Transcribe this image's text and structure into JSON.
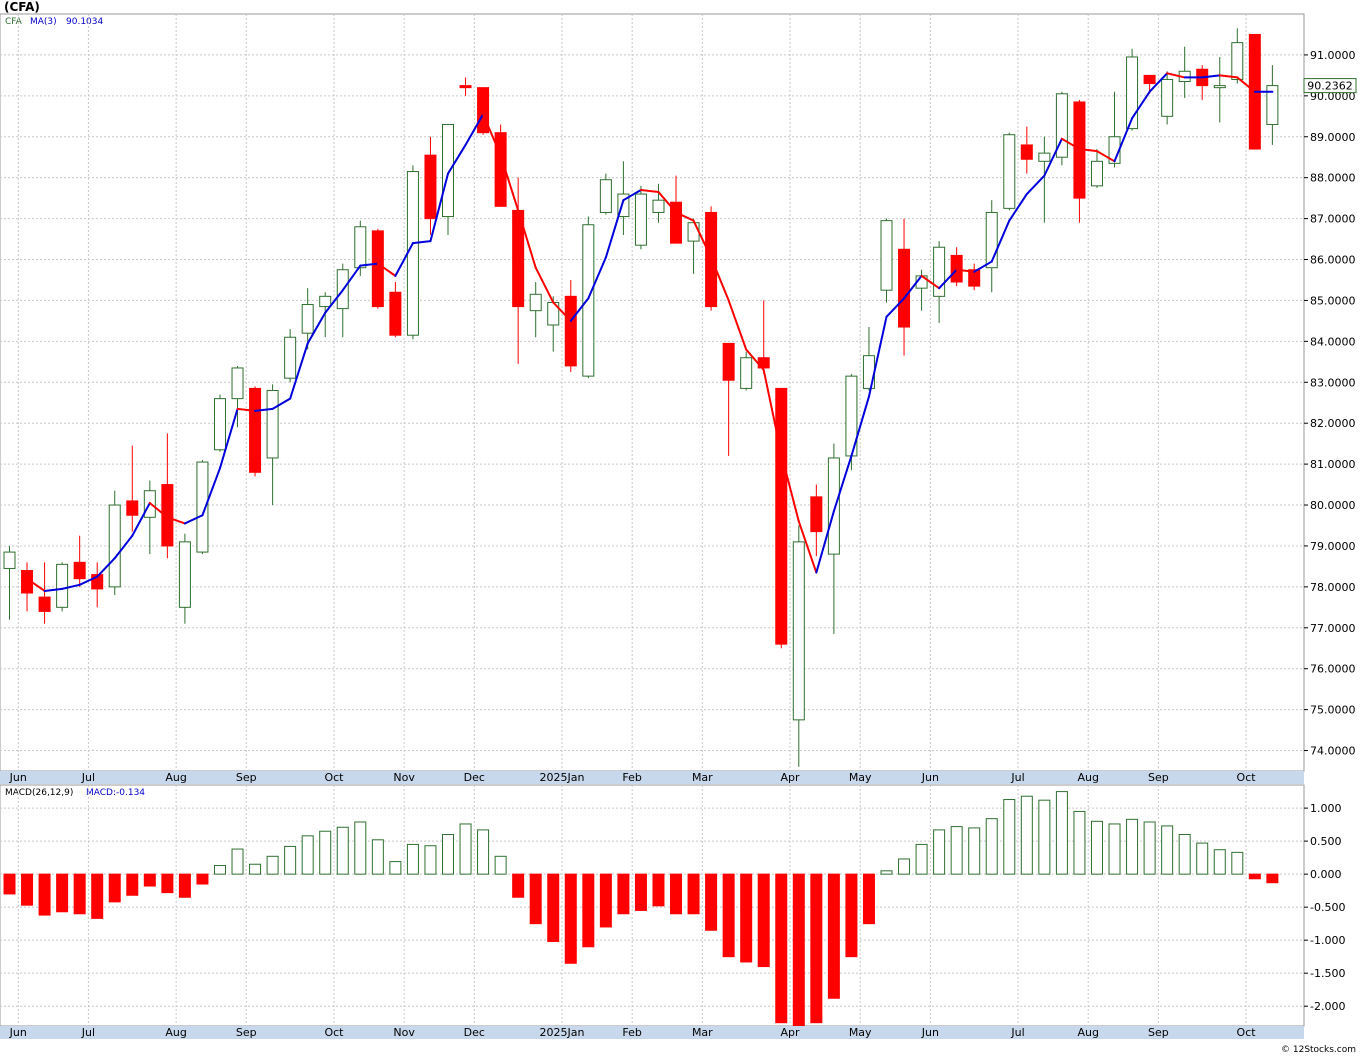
{
  "header": {
    "title": "(CFA)",
    "symbol": "CFA",
    "ma_label": "MA(3)",
    "ma_value": "90.1034",
    "last_price": "90.2362",
    "macd_label": "MACD(26,12,9)",
    "macd_value": "MACD:-0.134",
    "footer": "© 12Stocks.com"
  },
  "colors": {
    "up": "#2f6f2f",
    "down": "#ff0000",
    "ma_up": "#0000dd",
    "ma_down": "#ff0000",
    "grid": "#c8c8c8",
    "axis_bar": "#c8d8ec"
  },
  "chart_data": [
    {
      "type": "candlestick",
      "title": "(CFA)",
      "ylim": [
        73.5,
        92.0
      ],
      "ytick_values": [
        74,
        75,
        76,
        77,
        78,
        79,
        80,
        81,
        82,
        83,
        84,
        85,
        86,
        87,
        88,
        89,
        90,
        91
      ],
      "ytick_labels": [
        "74.0000",
        "75.0000",
        "76.0000",
        "77.0000",
        "78.0000",
        "79.0000",
        "80.0000",
        "81.0000",
        "82.0000",
        "83.0000",
        "84.0000",
        "85.0000",
        "86.0000",
        "87.0000",
        "88.0000",
        "89.0000",
        "90.0000",
        "91.0000"
      ],
      "month_labels": [
        {
          "label": "Jun",
          "bar": 1
        },
        {
          "label": "Jul",
          "bar": 5
        },
        {
          "label": "Aug",
          "bar": 10
        },
        {
          "label": "Sep",
          "bar": 14
        },
        {
          "label": "Oct",
          "bar": 19
        },
        {
          "label": "Nov",
          "bar": 23
        },
        {
          "label": "Dec",
          "bar": 27
        },
        {
          "label": "2025Jan",
          "bar": 32
        },
        {
          "label": "Feb",
          "bar": 36
        },
        {
          "label": "Mar",
          "bar": 40
        },
        {
          "label": "Apr",
          "bar": 45
        },
        {
          "label": "May",
          "bar": 49
        },
        {
          "label": "Jun",
          "bar": 53
        },
        {
          "label": "Jul",
          "bar": 58
        },
        {
          "label": "Aug",
          "bar": 62
        },
        {
          "label": "Sep",
          "bar": 66
        },
        {
          "label": "Oct",
          "bar": 71
        }
      ],
      "ohlc": [
        [
          78.45,
          79.0,
          77.2,
          78.85
        ],
        [
          78.4,
          78.6,
          77.4,
          77.85
        ],
        [
          77.75,
          78.6,
          77.1,
          77.4
        ],
        [
          77.5,
          78.6,
          77.4,
          78.55
        ],
        [
          78.6,
          79.25,
          78.0,
          78.2
        ],
        [
          78.3,
          78.6,
          77.5,
          77.95
        ],
        [
          78.0,
          80.35,
          77.8,
          80.0
        ],
        [
          80.1,
          81.45,
          79.35,
          79.75
        ],
        [
          79.7,
          80.6,
          78.8,
          80.35
        ],
        [
          80.5,
          81.75,
          78.7,
          79.0
        ],
        [
          77.5,
          79.3,
          77.1,
          79.1
        ],
        [
          78.85,
          81.1,
          78.8,
          81.05
        ],
        [
          81.35,
          82.7,
          81.3,
          82.6
        ],
        [
          82.6,
          83.4,
          81.9,
          83.35
        ],
        [
          82.85,
          82.9,
          80.7,
          80.8
        ],
        [
          81.15,
          82.95,
          80.0,
          82.8
        ],
        [
          83.1,
          84.3,
          83.0,
          84.1
        ],
        [
          84.2,
          85.3,
          83.8,
          84.9
        ],
        [
          84.85,
          85.2,
          84.1,
          85.1
        ],
        [
          84.8,
          85.9,
          84.1,
          85.75
        ],
        [
          85.8,
          86.95,
          85.6,
          86.8
        ],
        [
          86.7,
          86.75,
          84.8,
          84.85
        ],
        [
          85.2,
          85.45,
          84.1,
          84.15
        ],
        [
          84.15,
          88.3,
          84.05,
          88.15
        ],
        [
          88.55,
          89.0,
          86.6,
          87.0
        ],
        [
          87.05,
          89.3,
          86.6,
          89.3
        ],
        [
          90.25,
          90.45,
          90.0,
          90.2
        ],
        [
          90.2,
          90.2,
          89.05,
          89.1
        ],
        [
          89.1,
          89.3,
          87.3,
          87.3
        ],
        [
          87.2,
          88.0,
          83.45,
          84.85
        ],
        [
          84.75,
          85.45,
          84.1,
          85.15
        ],
        [
          84.4,
          85.1,
          83.75,
          84.95
        ],
        [
          85.1,
          85.5,
          83.25,
          83.4
        ],
        [
          83.15,
          87.05,
          83.1,
          86.85
        ],
        [
          87.15,
          88.1,
          87.1,
          87.95
        ],
        [
          87.05,
          88.4,
          86.6,
          87.6
        ],
        [
          86.35,
          87.8,
          86.25,
          87.6
        ],
        [
          87.15,
          87.85,
          86.9,
          87.45
        ],
        [
          87.4,
          88.05,
          86.45,
          86.4
        ],
        [
          86.45,
          87.0,
          85.65,
          86.9
        ],
        [
          87.15,
          87.3,
          84.75,
          84.85
        ],
        [
          83.95,
          83.95,
          81.2,
          83.05
        ],
        [
          82.85,
          83.75,
          82.8,
          83.6
        ],
        [
          83.6,
          85.0,
          83.2,
          83.35
        ],
        [
          82.85,
          82.85,
          76.5,
          76.6
        ],
        [
          74.75,
          79.5,
          73.6,
          79.1
        ],
        [
          80.2,
          80.5,
          78.75,
          79.35
        ],
        [
          78.8,
          81.5,
          76.85,
          81.15
        ],
        [
          81.2,
          83.2,
          80.85,
          83.15
        ],
        [
          82.85,
          84.35,
          82.8,
          83.65
        ],
        [
          85.25,
          87.0,
          84.95,
          86.95
        ],
        [
          86.25,
          87.0,
          83.65,
          84.35
        ],
        [
          85.3,
          85.75,
          84.75,
          85.6
        ],
        [
          85.1,
          86.45,
          84.45,
          86.3
        ],
        [
          86.1,
          86.3,
          85.35,
          85.45
        ],
        [
          85.75,
          85.9,
          85.25,
          85.35
        ],
        [
          85.8,
          87.45,
          85.2,
          87.15
        ],
        [
          87.25,
          89.1,
          87.2,
          89.05
        ],
        [
          88.8,
          89.25,
          88.1,
          88.45
        ],
        [
          88.4,
          89.0,
          86.9,
          88.6
        ],
        [
          88.5,
          90.1,
          88.3,
          90.05
        ],
        [
          89.85,
          89.9,
          86.9,
          87.5
        ],
        [
          87.8,
          88.7,
          87.75,
          88.4
        ],
        [
          88.35,
          90.1,
          88.25,
          89.0
        ],
        [
          89.2,
          91.15,
          89.15,
          90.95
        ],
        [
          90.5,
          90.5,
          90.05,
          90.3
        ],
        [
          89.5,
          90.6,
          89.3,
          90.4
        ],
        [
          90.35,
          91.2,
          89.95,
          90.6
        ],
        [
          90.65,
          90.75,
          89.9,
          90.25
        ],
        [
          90.2,
          90.95,
          89.35,
          90.25
        ],
        [
          90.4,
          91.65,
          90.3,
          91.3
        ],
        [
          91.5,
          91.5,
          88.7,
          88.7
        ],
        [
          89.3,
          90.75,
          88.8,
          90.25
        ]
      ],
      "ma3": [
        null,
        78.2,
        77.9,
        77.95,
        78.05,
        78.25,
        78.7,
        79.25,
        80.05,
        79.7,
        79.55,
        79.75,
        80.9,
        82.35,
        82.3,
        82.35,
        82.6,
        83.95,
        84.7,
        85.25,
        85.85,
        85.9,
        85.6,
        86.4,
        86.45,
        88.1,
        88.8,
        89.55,
        88.55,
        87.2,
        85.8,
        84.95,
        84.5,
        85.05,
        86.05,
        87.45,
        87.7,
        87.65,
        87.15,
        86.95,
        86.05,
        85.0,
        83.8,
        83.3,
        81.25,
        79.6,
        78.35,
        79.85,
        81.2,
        82.65,
        84.6,
        85.05,
        85.6,
        85.3,
        85.75,
        85.7,
        85.95,
        86.95,
        87.6,
        88.05,
        88.95,
        88.7,
        88.65,
        88.4,
        89.45,
        90.1,
        90.55,
        90.45,
        90.45,
        90.5,
        90.45,
        90.1,
        90.1
      ],
      "ma3_last": 90.1034
    },
    {
      "type": "bar",
      "title": "MACD(26,12,9)",
      "ylim": [
        -2.3,
        1.35
      ],
      "ytick_values": [
        1.0,
        0.5,
        0.0,
        -0.5,
        -1.0,
        -1.5,
        -2.0
      ],
      "ytick_labels": [
        "1.000",
        "0.500",
        "0.000",
        "-0.500",
        "-1.000",
        "-1.500",
        "-2.000"
      ],
      "values": [
        -0.3,
        -0.47,
        -0.62,
        -0.57,
        -0.6,
        -0.67,
        -0.42,
        -0.32,
        -0.18,
        -0.28,
        -0.35,
        -0.15,
        0.13,
        0.38,
        0.15,
        0.27,
        0.42,
        0.58,
        0.65,
        0.71,
        0.79,
        0.52,
        0.19,
        0.45,
        0.43,
        0.6,
        0.76,
        0.67,
        0.27,
        -0.35,
        -0.75,
        -1.02,
        -1.35,
        -1.1,
        -0.8,
        -0.6,
        -0.55,
        -0.48,
        -0.6,
        -0.6,
        -0.85,
        -1.25,
        -1.33,
        -1.4,
        -2.25,
        -2.32,
        -2.25,
        -1.88,
        -1.25,
        -0.75,
        0.05,
        0.23,
        0.45,
        0.67,
        0.72,
        0.7,
        0.84,
        1.13,
        1.18,
        1.12,
        1.25,
        0.95,
        0.8,
        0.76,
        0.83,
        0.79,
        0.73,
        0.6,
        0.47,
        0.37,
        0.33,
        -0.07,
        -0.13
      ]
    }
  ]
}
